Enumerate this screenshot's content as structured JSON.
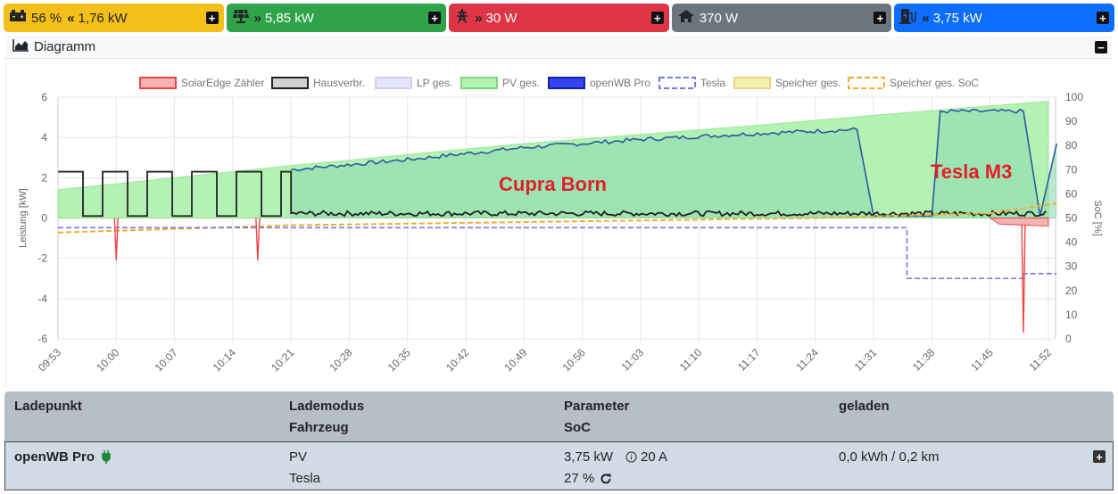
{
  "topbar": {
    "battery": {
      "soc": "56 %",
      "arrows": "«",
      "power": "1,76 kW"
    },
    "pv": {
      "arrows": "»",
      "power": "5,85 kW"
    },
    "grid": {
      "arrows": "»",
      "power": "30 W"
    },
    "house": {
      "power": "370 W"
    },
    "chargepoint": {
      "arrows": "«",
      "power": "3,75 kW"
    }
  },
  "diagram": {
    "title": "Diagramm",
    "annotations": [
      "Cupra Born",
      "Tesla M3"
    ]
  },
  "chart_data": {
    "type": "line",
    "legend": [
      "SolarEdge Zähler",
      "Hausverbr.",
      "LP ges.",
      "PV ges.",
      "openWB Pro",
      "Tesla",
      "Speicher ges.",
      "Speicher ges. SoC"
    ],
    "legend_placement": "top-center",
    "xlabel": "",
    "ylabel": "Leistung [kW]",
    "y2label": "SoC [%]",
    "ylim": [
      -6,
      6
    ],
    "y2lim": [
      0,
      100
    ],
    "yticks": [
      "6",
      "4",
      "2",
      "0",
      "-2",
      "-4",
      "-6"
    ],
    "y2ticks": [
      "100",
      "90",
      "80",
      "70",
      "60",
      "50",
      "40",
      "30",
      "20",
      "10",
      "0"
    ],
    "xticks": [
      "09:53",
      "10:00",
      "10:07",
      "10:14",
      "10:21",
      "10:28",
      "10:35",
      "10:42",
      "10:49",
      "10:56",
      "11:03",
      "11:10",
      "11:17",
      "11:24",
      "11:31",
      "11:38",
      "11:45",
      "11:52"
    ],
    "grid": true,
    "series": [
      {
        "name": "PV ges.",
        "color": "#9be89b",
        "axis": "y",
        "points": [
          [
            "09:53",
            1.4
          ],
          [
            "10:21",
            2.6
          ],
          [
            "10:49",
            3.7
          ],
          [
            "11:17",
            4.6
          ],
          [
            "11:31",
            5.1
          ],
          [
            "11:52",
            5.8
          ]
        ]
      },
      {
        "name": "openWB Pro",
        "color": "#2c5aa0",
        "axis": "y",
        "points": [
          [
            "10:21",
            2.4
          ],
          [
            "10:35",
            2.9
          ],
          [
            "10:49",
            3.5
          ],
          [
            "11:03",
            3.9
          ],
          [
            "11:17",
            4.2
          ],
          [
            "11:29",
            4.4
          ],
          [
            "11:31",
            0.1
          ],
          [
            "11:38",
            0.1
          ],
          [
            "11:39",
            5.3
          ],
          [
            "11:49",
            5.3
          ],
          [
            "11:51",
            0.1
          ],
          [
            "11:53",
            3.7
          ]
        ]
      },
      {
        "name": "Hausverbr.",
        "color": "#222222",
        "axis": "y",
        "points": [
          [
            "09:53",
            2.3
          ],
          [
            "10:21",
            0.3
          ],
          [
            "11:52",
            0.3
          ]
        ]
      },
      {
        "name": "SolarEdge Zähler",
        "color": "#e44",
        "axis": "y",
        "points": [
          [
            "10:00",
            -2.1
          ],
          [
            "10:17",
            -2.1
          ],
          [
            "11:49",
            -5.7
          ],
          [
            "11:52",
            -0.4
          ]
        ]
      },
      {
        "name": "Tesla",
        "color": "#7777ee",
        "axis": "y2",
        "points": [
          [
            "09:53",
            46
          ],
          [
            "11:35",
            46
          ],
          [
            "11:36",
            25
          ],
          [
            "11:49",
            27
          ],
          [
            "11:53",
            27
          ]
        ]
      },
      {
        "name": "Speicher ges. SoC",
        "color": "#f0b030",
        "axis": "y2",
        "points": [
          [
            "09:53",
            44
          ],
          [
            "10:21",
            47
          ],
          [
            "11:24",
            50
          ],
          [
            "11:45",
            52
          ],
          [
            "11:53",
            56
          ]
        ]
      }
    ]
  },
  "table": {
    "headers": [
      {
        "line1": "Ladepunkt",
        "line2": ""
      },
      {
        "line1": "Lademodus",
        "line2": "Fahrzeug"
      },
      {
        "line1": "Parameter",
        "line2": "SoC"
      },
      {
        "line1": "geladen",
        "line2": ""
      }
    ],
    "row": {
      "name": "openWB Pro",
      "mode": "PV",
      "vehicle": "Tesla",
      "power": "3,75 kW",
      "current": "20 A",
      "soc": "27 %",
      "charged": "0,0 kWh / 0,2 km"
    }
  }
}
